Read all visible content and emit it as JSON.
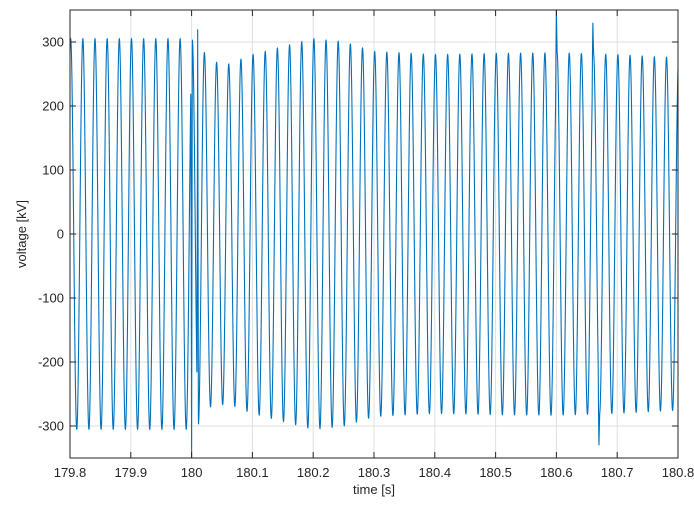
{
  "chart_data": {
    "type": "line",
    "title": "",
    "xlabel": "time [s]",
    "ylabel": "voltage [kV]",
    "xlim": [
      179.8,
      180.8
    ],
    "ylim": [
      -350,
      350
    ],
    "x_ticks": [
      179.8,
      179.9,
      180.0,
      180.1,
      180.2,
      180.3,
      180.4,
      180.5,
      180.6,
      180.7,
      180.8
    ],
    "x_tick_labels": [
      "179.8",
      "179.9",
      "180",
      "180.1",
      "180.2",
      "180.3",
      "180.4",
      "180.5",
      "180.6",
      "180.7",
      "180.8"
    ],
    "y_ticks": [
      -300,
      -200,
      -100,
      0,
      100,
      200,
      300
    ],
    "y_tick_labels": [
      "-300",
      "-200",
      "-100",
      "0",
      "100",
      "200",
      "300"
    ],
    "grid": true,
    "series_color": "#0072BD",
    "signal": {
      "frequency_hz": 50,
      "amplitude_envelope_kv": [
        [
          179.8,
          305
        ],
        [
          180.0,
          305
        ],
        [
          180.01,
          300
        ],
        [
          180.03,
          270
        ],
        [
          180.06,
          265
        ],
        [
          180.1,
          280
        ],
        [
          180.2,
          305
        ],
        [
          180.25,
          300
        ],
        [
          180.3,
          285
        ],
        [
          180.4,
          280
        ],
        [
          180.5,
          282
        ],
        [
          180.6,
          283
        ],
        [
          180.7,
          280
        ],
        [
          180.8,
          275
        ]
      ],
      "transients": [
        {
          "t": 180.0,
          "value_kv": -350
        },
        {
          "t": 180.01,
          "value_kv": 320
        },
        {
          "t": 180.6,
          "value_kv": 350
        },
        {
          "t": 180.66,
          "value_kv": 330
        },
        {
          "t": 180.67,
          "value_kv": -330
        }
      ]
    }
  }
}
